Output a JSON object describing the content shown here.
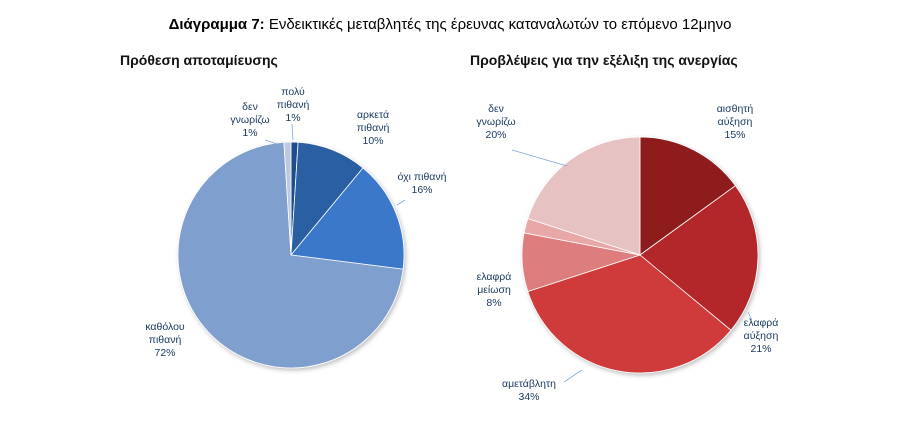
{
  "figure_title": {
    "lead": "Διάγραμμα 7:",
    "rest": " Ενδεικτικές μεταβλητές της έρευνας καταναλωτών το επόμενο 12μηνο"
  },
  "label_color": "#17375e",
  "chart_data": [
    {
      "type": "pie",
      "title": "Πρόθεση αποταμίευσης",
      "slices": [
        {
          "label": [
            "πολύ",
            "πιθανή"
          ],
          "value": 1,
          "color": "#1f4e8c"
        },
        {
          "label": [
            "αρκετά",
            "πιθανή"
          ],
          "value": 10,
          "color": "#2a5fa3"
        },
        {
          "label": [
            "όχι πιθανή"
          ],
          "value": 16,
          "color": "#3a78c9"
        },
        {
          "label": [
            "καθόλου",
            "πιθανή"
          ],
          "value": 72,
          "color": "#7f9fcf"
        },
        {
          "label": [
            "δεν",
            "γνωρίζω"
          ],
          "value": 1,
          "color": "#bcc9de"
        }
      ]
    },
    {
      "type": "pie",
      "title": "Προβλέψεις για την εξέλιξη της ανεργίας",
      "slices": [
        {
          "label": [
            "αισθητή",
            "αύξηση"
          ],
          "value": 15,
          "color": "#8e1f1f"
        },
        {
          "label": [
            "ελαφρά",
            "αύξηση"
          ],
          "value": 21,
          "color": "#b3282a"
        },
        {
          "label": [
            "αμετάβλητη"
          ],
          "value": 34,
          "color": "#cf3a3a"
        },
        {
          "label": [
            "ελαφρά",
            "μείωση"
          ],
          "value": 8,
          "color": "#de7d7d"
        },
        {
          "label": [],
          "value": 2,
          "color": "#e9a8a8"
        },
        {
          "label": [
            "δεν",
            "γνωρίζω"
          ],
          "value": 20,
          "color": "#e6c2c2"
        }
      ]
    }
  ]
}
